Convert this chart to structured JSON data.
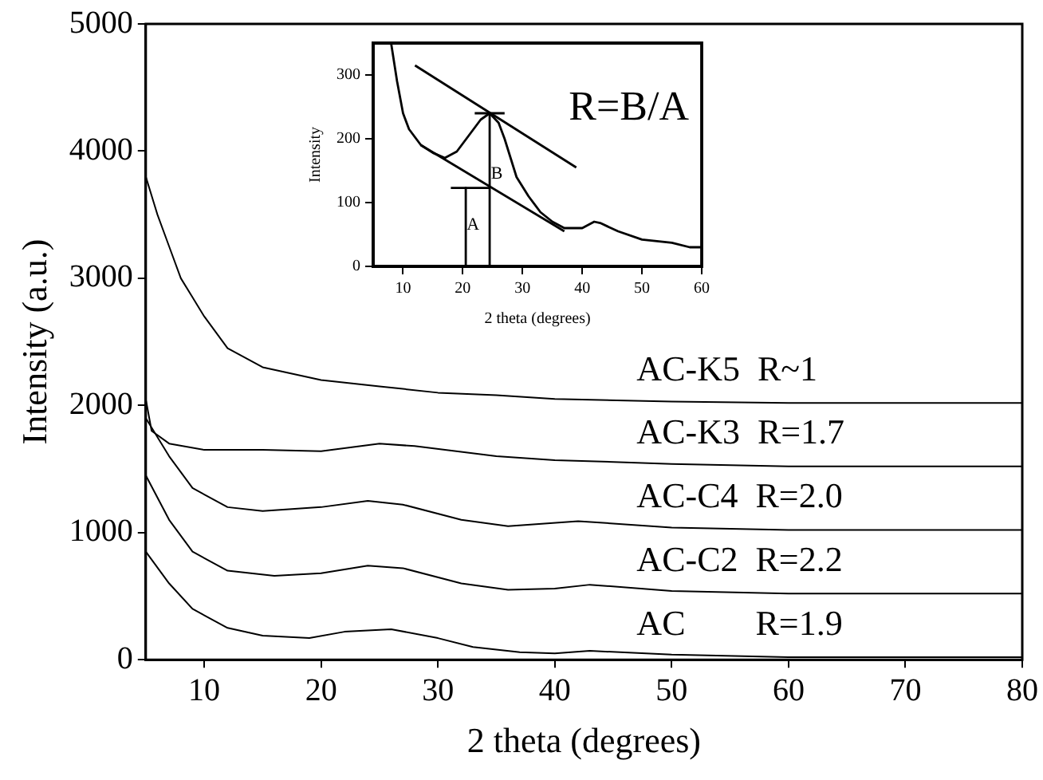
{
  "chart_data": [
    {
      "type": "line",
      "xlabel": "2 theta (degrees)",
      "ylabel": "Intensity (a.u.)",
      "xlim": [
        5,
        80
      ],
      "ylim": [
        0,
        5000
      ],
      "xticks": [
        10,
        20,
        30,
        40,
        50,
        60,
        70,
        80
      ],
      "yticks": [
        0,
        1000,
        2000,
        3000,
        4000,
        5000
      ],
      "grid": false,
      "legend": false,
      "marker": "none",
      "line_style": "solid",
      "series": [
        {
          "name": "AC-K5  R~1",
          "color": "#000000",
          "x": [
            5,
            6,
            7,
            8,
            9,
            10,
            12,
            15,
            20,
            25,
            30,
            35,
            40,
            50,
            60,
            70,
            80
          ],
          "values": [
            3800,
            3500,
            3250,
            3000,
            2850,
            2700,
            2450,
            2300,
            2200,
            2150,
            2100,
            2080,
            2050,
            2030,
            2020,
            2020,
            2020
          ]
        },
        {
          "name": "AC-K3  R=1.7",
          "color": "#000000",
          "x": [
            5,
            5.5,
            7,
            10,
            15,
            20,
            25,
            28,
            35,
            40,
            50,
            60,
            70,
            80
          ],
          "values": [
            2050,
            1800,
            1700,
            1650,
            1650,
            1640,
            1700,
            1680,
            1600,
            1570,
            1540,
            1520,
            1520,
            1520
          ]
        },
        {
          "name": "AC-C4  R=2.0",
          "color": "#000000",
          "x": [
            5,
            7,
            9,
            12,
            15,
            20,
            24,
            27,
            32,
            36,
            42,
            50,
            60,
            70,
            80
          ],
          "values": [
            1900,
            1600,
            1350,
            1200,
            1170,
            1200,
            1250,
            1220,
            1100,
            1050,
            1090,
            1040,
            1020,
            1020,
            1020
          ]
        },
        {
          "name": "AC-C2  R=2.2",
          "color": "#000000",
          "x": [
            5,
            7,
            9,
            12,
            16,
            20,
            24,
            27,
            32,
            36,
            40,
            43,
            50,
            60,
            70,
            80
          ],
          "values": [
            1450,
            1100,
            850,
            700,
            660,
            680,
            740,
            720,
            600,
            550,
            560,
            590,
            540,
            520,
            520,
            520
          ]
        },
        {
          "name": "AC        R=1.9",
          "color": "#000000",
          "x": [
            5,
            7,
            9,
            12,
            15,
            19,
            22,
            26,
            30,
            33,
            37,
            40,
            43,
            50,
            60,
            70,
            80
          ],
          "values": [
            850,
            600,
            400,
            250,
            190,
            170,
            220,
            240,
            170,
            100,
            60,
            50,
            70,
            40,
            20,
            20,
            20
          ]
        }
      ]
    },
    {
      "type": "line",
      "xlabel": "2 theta (degrees)",
      "ylabel": "Intensity",
      "xlim": [
        5,
        60
      ],
      "ylim": [
        0,
        350
      ],
      "xticks": [
        10,
        20,
        30,
        40,
        50,
        60
      ],
      "yticks": [
        0,
        100,
        200,
        300
      ],
      "grid": false,
      "legend": false,
      "marker": "none",
      "line_style": "solid",
      "annotations": [
        "R=B/A",
        {
          "text": "A",
          "x": 21.7,
          "y": 65
        },
        {
          "text": "B",
          "x": 25.7,
          "y": 145
        }
      ],
      "series": [
        {
          "color": "#000000",
          "x": [
            8,
            9,
            10,
            11,
            13,
            15,
            17,
            19,
            21,
            23,
            24.5,
            26,
            27,
            28,
            29,
            31,
            33,
            35,
            37,
            40,
            42,
            43,
            46,
            50,
            55,
            58,
            60
          ],
          "values": [
            350,
            290,
            240,
            215,
            190,
            178,
            170,
            180,
            205,
            230,
            240,
            225,
            200,
            170,
            140,
            110,
            85,
            70,
            60,
            60,
            70,
            68,
            55,
            42,
            37,
            30,
            30
          ]
        },
        {
          "color": "#000000",
          "x": [
            12,
            39
          ],
          "values": [
            315,
            155
          ]
        },
        {
          "color": "#000000",
          "x": [
            13,
            37
          ],
          "values": [
            190,
            55
          ]
        },
        {
          "color": "#000000",
          "x": [
            18,
            24.5
          ],
          "values": [
            123,
            123
          ]
        },
        {
          "color": "#000000",
          "x": [
            20.5,
            20.5
          ],
          "values": [
            123,
            0
          ]
        },
        {
          "color": "#000000",
          "x": [
            22,
            27
          ],
          "values": [
            240,
            240
          ]
        },
        {
          "color": "#000000",
          "x": [
            24.5,
            24.5
          ],
          "values": [
            240,
            0
          ]
        }
      ]
    }
  ]
}
